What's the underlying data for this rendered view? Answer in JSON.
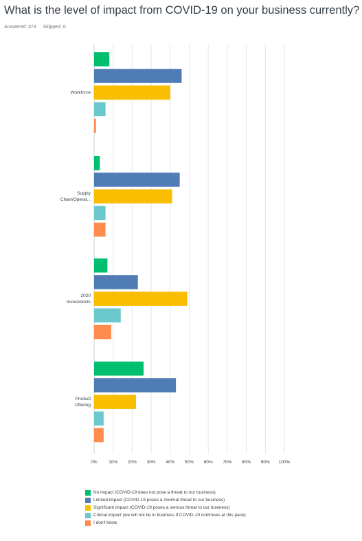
{
  "question": {
    "title": "What is the level of impact from COVID-19 on your business currently?",
    "answered": "Answered: 374",
    "skipped": "Skipped: 0"
  },
  "chart_data": {
    "type": "bar",
    "orientation": "horizontal",
    "categories": [
      "Workforce",
      "Supply Chain/Operat...",
      "2020 Investments",
      "Product Offering"
    ],
    "category_label_lines": [
      [
        "Workforce"
      ],
      [
        "Supply",
        "Chain/Operat..."
      ],
      [
        "2020",
        "Investments"
      ],
      [
        "Product",
        "Offering"
      ]
    ],
    "series": [
      {
        "name": "No impact (COVID-19 does not pose a threat to our business)",
        "color": "#00bf6f",
        "values": [
          8,
          3,
          7,
          26
        ]
      },
      {
        "name": "Limited impact (COVID-19 poses a minimal threat to our business)",
        "color": "#507cb6",
        "values": [
          46,
          45,
          23,
          43
        ]
      },
      {
        "name": "Significant impact (COVID-19 poses a serious threat to our business)",
        "color": "#f9be00",
        "values": [
          40,
          41,
          49,
          22
        ]
      },
      {
        "name": "Critical impact (we will not be in business if COVID-19 continues at this pace)",
        "color": "#6bc8cd",
        "values": [
          6,
          6,
          14,
          5
        ]
      },
      {
        "name": "I don't know",
        "color": "#ff8b4f",
        "values": [
          1,
          6,
          9,
          5
        ]
      }
    ],
    "xlim": [
      0,
      100
    ],
    "x_ticks": [
      "0%",
      "10%",
      "20%",
      "30%",
      "40%",
      "50%",
      "60%",
      "70%",
      "80%",
      "90%",
      "100%"
    ],
    "grid": true,
    "legend_position": "bottom-left"
  }
}
